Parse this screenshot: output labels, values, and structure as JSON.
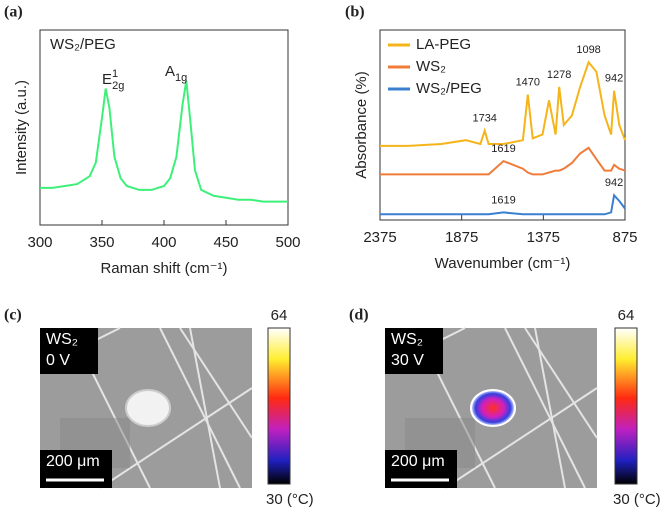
{
  "chart_data": [
    {
      "type": "line",
      "label": "(a)",
      "title": "WS₂/PEG",
      "xlabel": "Raman shift (cm⁻¹)",
      "ylabel": "Intensity (a.u.)",
      "annotations": [
        {
          "base": "E",
          "sup": "1",
          "sub": "2g"
        },
        {
          "base": "A",
          "sub": "1g"
        }
      ],
      "color": "#3ef07a",
      "x": [
        300,
        310,
        320,
        330,
        340,
        345,
        350,
        353,
        356,
        360,
        365,
        370,
        380,
        390,
        400,
        405,
        410,
        415,
        418,
        421,
        425,
        430,
        440,
        450,
        460,
        470,
        480,
        490,
        500
      ],
      "values": [
        0.19,
        0.19,
        0.2,
        0.21,
        0.25,
        0.32,
        0.55,
        0.7,
        0.6,
        0.35,
        0.24,
        0.2,
        0.18,
        0.18,
        0.2,
        0.24,
        0.35,
        0.62,
        0.74,
        0.55,
        0.28,
        0.18,
        0.15,
        0.14,
        0.13,
        0.13,
        0.12,
        0.12,
        0.12
      ],
      "xlim": [
        300,
        500
      ],
      "xticks": [
        300,
        350,
        400,
        450,
        500
      ],
      "ylim": [
        0,
        1
      ]
    },
    {
      "type": "line",
      "label": "(b)",
      "xlabel": "Wavenumber (cm⁻¹)",
      "ylabel": "Absorbance (%)",
      "legend": "upper left",
      "x": [
        2375,
        2200,
        2000,
        1850,
        1760,
        1734,
        1710,
        1619,
        1500,
        1470,
        1440,
        1380,
        1340,
        1300,
        1278,
        1250,
        1200,
        1150,
        1098,
        1050,
        1000,
        960,
        942,
        910,
        875
      ],
      "series": [
        {
          "name": "LA-PEG",
          "color": "#f5b51a",
          "peak_labels": [
            "1734",
            "1470",
            "1278",
            "1098",
            "942"
          ],
          "values": [
            0.39,
            0.39,
            0.4,
            0.42,
            0.4,
            0.47,
            0.4,
            0.4,
            0.42,
            0.66,
            0.43,
            0.45,
            0.63,
            0.45,
            0.7,
            0.5,
            0.55,
            0.7,
            0.83,
            0.78,
            0.55,
            0.45,
            0.68,
            0.5,
            0.42
          ]
        },
        {
          "name": "WS₂",
          "color": "#f07c3a",
          "peak_labels": [
            "1619"
          ],
          "values": [
            0.24,
            0.24,
            0.24,
            0.24,
            0.24,
            0.24,
            0.24,
            0.31,
            0.27,
            0.25,
            0.24,
            0.24,
            0.25,
            0.26,
            0.26,
            0.27,
            0.3,
            0.35,
            0.38,
            0.32,
            0.26,
            0.26,
            0.29,
            0.27,
            0.26
          ]
        },
        {
          "name": "WS₂/PEG",
          "color": "#3a7fd0",
          "peak_labels": [
            "1619",
            "942"
          ],
          "values": [
            0.03,
            0.03,
            0.03,
            0.03,
            0.03,
            0.03,
            0.03,
            0.04,
            0.03,
            0.03,
            0.03,
            0.03,
            0.03,
            0.03,
            0.03,
            0.03,
            0.03,
            0.03,
            0.03,
            0.03,
            0.03,
            0.04,
            0.13,
            0.1,
            0.06
          ]
        }
      ],
      "xlim": [
        2375,
        875
      ],
      "xticks": [
        2375,
        1875,
        1375,
        875
      ],
      "ylim": [
        0,
        1
      ]
    }
  ],
  "panels": [
    {
      "label": "(c)",
      "sample": "WS₂",
      "voltage": "0 V",
      "scale_bar": "200 μm",
      "colorbar_max": "64",
      "colorbar_min": "30 (°C)"
    },
    {
      "label": "(d)",
      "sample": "WS₂",
      "voltage": "30 V",
      "scale_bar": "200 μm",
      "colorbar_max": "64",
      "colorbar_min": "30 (°C)"
    }
  ]
}
